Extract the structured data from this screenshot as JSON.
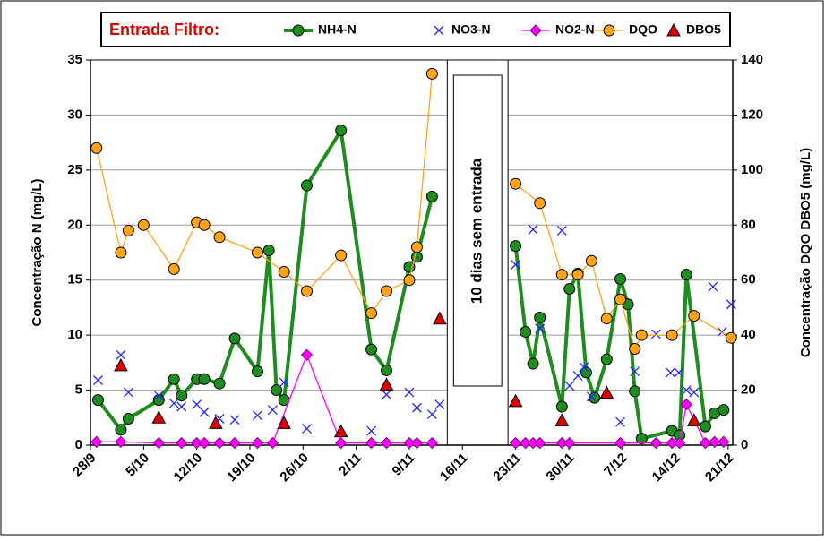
{
  "chart_data": {
    "type": "line",
    "legend_title": "Entrada Filtro:",
    "ylabel": "Concentração N (mg/L)",
    "y2label": "Concentração DQO DBO5 (mg/L)",
    "annotation": {
      "text": "10 dias sem entrada",
      "x": [
        47,
        55
      ]
    },
    "xlim": [
      0,
      84.6
    ],
    "xticks": [
      {
        "value": 0,
        "label": "28/9"
      },
      {
        "value": 7,
        "label": "5/10"
      },
      {
        "value": 14,
        "label": "12/10"
      },
      {
        "value": 21,
        "label": "19/10"
      },
      {
        "value": 28,
        "label": "26/10"
      },
      {
        "value": 35,
        "label": "2/11"
      },
      {
        "value": 42,
        "label": "9/11"
      },
      {
        "value": 49,
        "label": "16/11"
      },
      {
        "value": 56,
        "label": "23/11"
      },
      {
        "value": 63,
        "label": "30/11"
      },
      {
        "value": 70,
        "label": "7/12"
      },
      {
        "value": 77,
        "label": "14/12"
      },
      {
        "value": 84,
        "label": "21/12"
      }
    ],
    "ylim": [
      0,
      35
    ],
    "yticks": [
      0,
      5,
      10,
      15,
      20,
      25,
      30,
      35
    ],
    "y2lim": [
      0,
      140
    ],
    "y2ticks": [
      0,
      20,
      40,
      60,
      80,
      100,
      120,
      140
    ],
    "grid": true,
    "series": [
      {
        "name": "NH4-N",
        "color": "#1e8c1e",
        "marker": "circle",
        "line": true,
        "x": [
          1,
          4,
          5,
          9,
          11,
          12,
          14,
          15,
          17,
          19,
          22,
          23.5,
          24.5,
          25.5,
          28.5,
          33,
          37,
          39,
          42,
          43,
          45,
          null,
          56,
          57.3,
          58.3,
          59.2,
          62.1,
          63.1,
          64.2,
          65.3,
          66.4,
          68,
          69.8,
          70.8,
          71.7,
          72.6,
          76.6,
          77.6,
          78.5,
          81,
          82.2,
          83.4
        ],
        "values": [
          4.1,
          1.4,
          2.4,
          4.1,
          6.0,
          4.5,
          6.0,
          6.0,
          5.6,
          9.7,
          6.7,
          17.7,
          5.0,
          4.1,
          23.6,
          28.6,
          8.7,
          6.8,
          16.2,
          17.1,
          22.6,
          null,
          18.1,
          10.3,
          7.4,
          11.6,
          3.5,
          14.2,
          15.6,
          6.6,
          4.3,
          7.8,
          15.1,
          12.8,
          4.9,
          0.6,
          1.3,
          0.9,
          15.5,
          1.7,
          2.9,
          3.2
        ]
      },
      {
        "name": "NO3-N",
        "color": "#2424ff",
        "marker": "x",
        "line": false,
        "x": [
          1,
          4,
          5,
          9,
          11,
          12,
          14,
          15,
          17,
          19,
          22,
          24,
          25.5,
          28.5,
          37,
          39,
          42,
          43,
          45,
          46,
          56,
          58.3,
          59.2,
          62.1,
          63.1,
          64.2,
          65,
          66,
          69.8,
          71.7,
          74.5,
          76.4,
          77.5,
          78.5,
          79.5,
          82,
          83.2,
          84.4
        ],
        "values": [
          5.9,
          8.2,
          4.8,
          4.5,
          3.8,
          3.5,
          3.7,
          3.0,
          2.4,
          2.3,
          2.7,
          3.2,
          5.7,
          1.5,
          1.3,
          4.6,
          4.8,
          3.4,
          2.8,
          3.7,
          16.4,
          19.6,
          10.6,
          19.5,
          5.4,
          6.3,
          7.1,
          4.4,
          2.1,
          6.7,
          10.1,
          6.6,
          6.6,
          5.0,
          4.8,
          14.4,
          10.3,
          12.8
        ]
      },
      {
        "name": "NO2-N",
        "color": "#ff00ff",
        "marker": "diamond",
        "line": true,
        "x": [
          0.8,
          4,
          9,
          12,
          14,
          15,
          17,
          19,
          22,
          24,
          28.5,
          33,
          37,
          39,
          42,
          43,
          45,
          null,
          56,
          57.3,
          58.3,
          59.2,
          62.1,
          63.1,
          69.8,
          74.5,
          76.6,
          77.6,
          78.5,
          81,
          82.2,
          83.4
        ],
        "values": [
          0.3,
          0.3,
          0.2,
          0.2,
          0.2,
          0.2,
          0.2,
          0.2,
          0.2,
          0.2,
          8.2,
          0.2,
          0.2,
          0.2,
          0.2,
          0.2,
          0.2,
          null,
          0.2,
          0.2,
          0.2,
          0.2,
          0.2,
          0.2,
          0.2,
          0.2,
          0.2,
          0.2,
          3.7,
          0.2,
          0.3,
          0.3
        ]
      },
      {
        "name": "DQO",
        "color": "#ffa31a",
        "marker": "circle",
        "line": true,
        "axis": "y2",
        "x": [
          0.8,
          4,
          5,
          7,
          11,
          14,
          15,
          17,
          22,
          25.5,
          28.5,
          33,
          37,
          39,
          42,
          43,
          45,
          null,
          56,
          59.2,
          62.1,
          64.2,
          66,
          68,
          69.8,
          71.7,
          72.6,
          76.6,
          79.5,
          84.4
        ],
        "values": [
          108,
          70,
          78,
          80,
          64,
          81,
          80,
          75.6,
          70,
          63,
          56,
          69,
          48,
          56,
          60,
          72,
          135,
          null,
          95,
          88,
          62,
          62,
          67,
          46,
          53,
          35,
          40,
          40,
          47,
          39
        ]
      },
      {
        "name": "DBO5",
        "color": "#e00000",
        "marker": "triangle",
        "line": false,
        "axis": "y2",
        "x": [
          4,
          9,
          16.5,
          25.5,
          33,
          39,
          46,
          56,
          62.1,
          68,
          79.5
        ],
        "values": [
          29,
          10,
          8,
          8,
          5,
          22,
          46,
          16,
          9,
          19,
          9
        ]
      }
    ]
  }
}
